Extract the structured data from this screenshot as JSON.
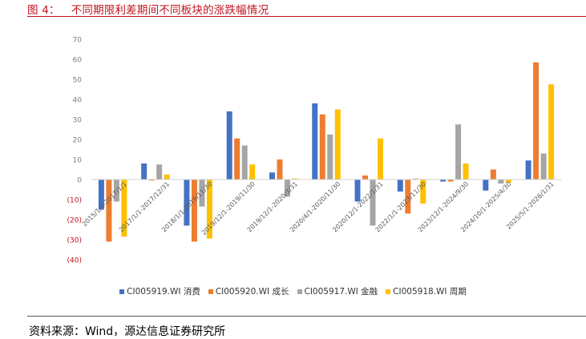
{
  "figure": {
    "number": "图 4：",
    "caption": "不同期限利差期间不同板块的涨跌幅情况",
    "source": "资料来源：Wind，源达信息证券研究所"
  },
  "colors": {
    "title": "#c0141e",
    "negative_tick": "#c0141e",
    "axis": "#d0d0d0",
    "tick": "#7f7f7f"
  },
  "chart_data": {
    "type": "bar",
    "title": "",
    "xlabel": "",
    "ylabel": "",
    "ylim": [
      -40,
      70
    ],
    "yticks": [
      70,
      60,
      50,
      40,
      30,
      20,
      10,
      0,
      -10,
      -20,
      -30,
      -40
    ],
    "ytick_labels": [
      "70",
      "60",
      "50",
      "40",
      "30",
      "20",
      "10",
      "0",
      "(10)",
      "(20)",
      "(30)",
      "(40)"
    ],
    "categories": [
      "2015/1/1-2017/1/1",
      "2017/1/1-2017/12/31",
      "2018/1/1-2019/11/30",
      "2019/12/1-2019/11/30",
      "2019/12/1-2020/3/31",
      "2020/4/1-2020/11/30",
      "2020/12/1-2022/1/31",
      "2022/1/1-2023/11/30",
      "2023/12/1-2024/9/30",
      "2024/10/1-2025/4/30",
      "2025/5/1-2026/1/31"
    ],
    "series": [
      {
        "name": "CI005919.WI 消费",
        "color": "#4472c4",
        "values": [
          -15,
          8,
          -23,
          34,
          3.5,
          38,
          -11,
          -6,
          -1,
          -5.5,
          9.5
        ]
      },
      {
        "name": "CI005920.WI 成长",
        "color": "#ed7d31",
        "values": [
          -31,
          -0.5,
          -31,
          20.5,
          10,
          32.5,
          2,
          -17,
          -1,
          5,
          58.5
        ]
      },
      {
        "name": "CI005917.WI 金融",
        "color": "#a5a5a5",
        "values": [
          -11,
          7.5,
          -13.5,
          17,
          -8.5,
          22.5,
          -23,
          0.5,
          27.5,
          -2,
          13
        ]
      },
      {
        "name": "CI005918.WI 周期",
        "color": "#ffc000",
        "values": [
          -28.5,
          2.5,
          -29.5,
          7.5,
          0.5,
          35,
          20.5,
          -12,
          8,
          -1.5,
          47.5
        ]
      }
    ],
    "legend_position": "bottom",
    "grid": false
  }
}
